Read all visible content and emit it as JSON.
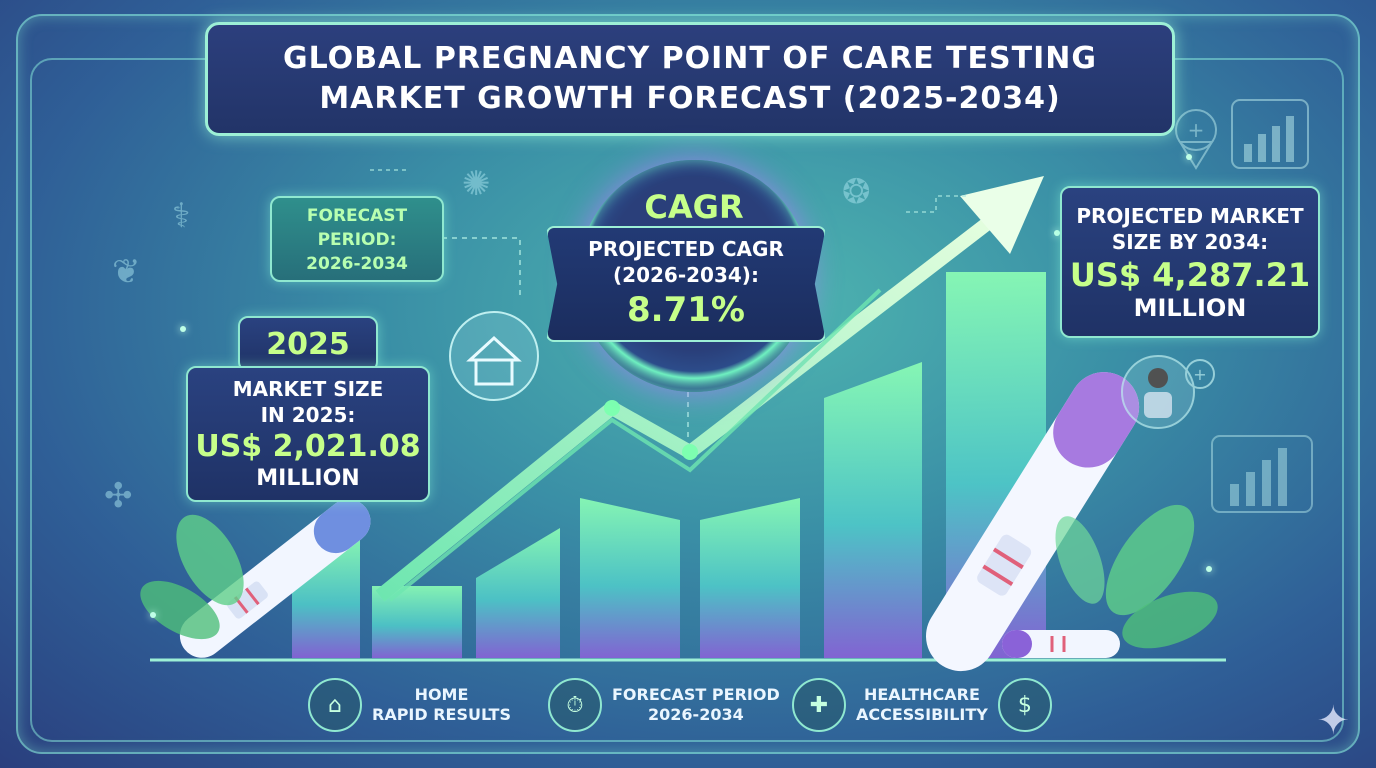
{
  "title": {
    "line1": "GLOBAL PREGNANCY POINT OF CARE TESTING",
    "line2": "MARKET GROWTH FORECAST (2025-2034)"
  },
  "forecast_period": {
    "line1": "FORECAST",
    "line2": "PERIOD:",
    "line3": "2026-2034"
  },
  "base_year": {
    "year": "2025",
    "label_line1": "MARKET SIZE",
    "label_line2": "IN 2025:",
    "value": "US$ 2,021.08",
    "unit": "MILLION"
  },
  "cagr": {
    "badge": "CAGR",
    "label_line1": "PROJECTED CAGR",
    "label_line2": "(2026-2034):",
    "value": "8.71%"
  },
  "projected": {
    "label_line1": "PROJECTED MARKET",
    "label_line2": "SIZE BY 2034:",
    "value": "US$ 4,287.21",
    "unit": "MILLION"
  },
  "bottom_features": [
    {
      "icon": "home-test-icon",
      "line1": "HOME",
      "line2": "RAPID RESULTS"
    },
    {
      "icon": "stopwatch-icon",
      "line1": "FORECAST PERIOD",
      "line2": "2026-2034"
    },
    {
      "icon": "care-hands-icon",
      "line1": "HEALTHCARE",
      "line2": "ACCESSIBILITY"
    }
  ],
  "decorative_icons": [
    "stethoscope-icon",
    "microbe-icon",
    "house-bubble-icon",
    "location-pin-icon",
    "bar-chart-icon",
    "doctor-icon",
    "pregnancy-test-icon",
    "leaf-icon",
    "sparkle-icon"
  ],
  "colors": {
    "accent_green": "#c6ff8a",
    "panel_navy": "#223468",
    "border_mint": "#9df0d6",
    "arrow_green": "#7dffb0"
  }
}
